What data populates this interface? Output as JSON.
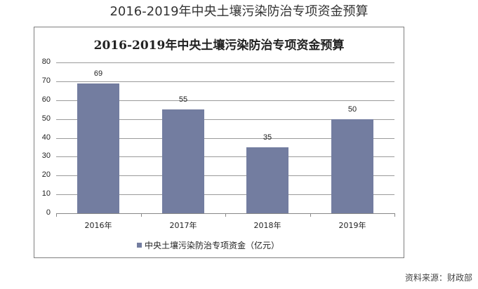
{
  "page": {
    "title": "2016-2019年中央土壤污染防治专项资金预算",
    "source": "资料来源：财政部"
  },
  "chart_data": {
    "type": "bar",
    "title": "2016-2019年中央土壤污染防治专项资金预算",
    "categories": [
      "2016年",
      "2017年",
      "2018年",
      "2019年"
    ],
    "series": [
      {
        "name": "中央土壤污染防治专项资金（亿元）",
        "values": [
          69,
          55,
          35,
          50
        ],
        "color": "#737da0"
      }
    ],
    "value_labels": [
      "69",
      "55",
      "35",
      "50"
    ],
    "xlabel": "",
    "ylabel": "",
    "ylim": [
      0,
      80
    ],
    "yticks": [
      "80",
      "70",
      "60",
      "50",
      "40",
      "30",
      "20",
      "10",
      "0"
    ],
    "grid": true,
    "legend_position": "bottom"
  }
}
